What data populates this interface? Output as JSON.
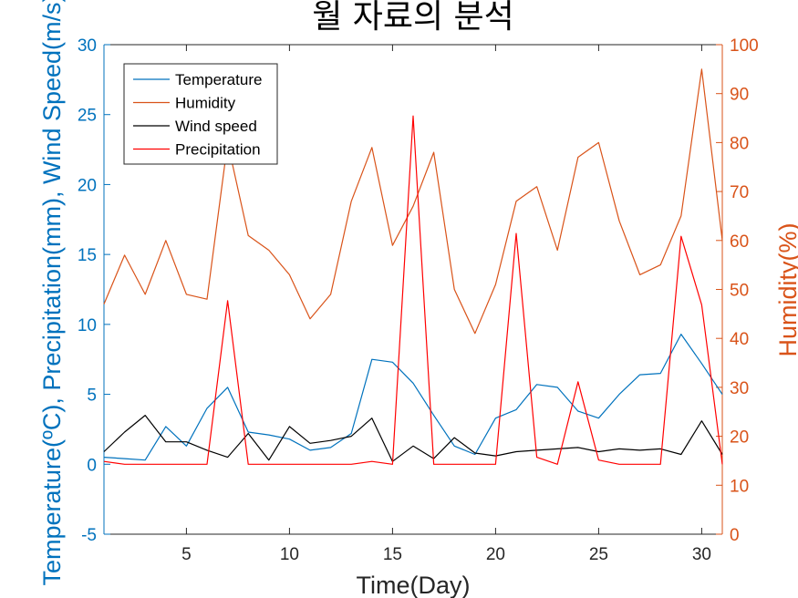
{
  "chart_data": {
    "type": "line",
    "title": "월 자료의 분석",
    "xlabel": "Time(Day)",
    "ylabel_left": "Temperature(ºC), Precipitation(mm), Wind Speed(m/s)",
    "ylabel_right": "Humidity(%)",
    "xlim": [
      1,
      31
    ],
    "ylim_left": [
      -5,
      30
    ],
    "ylim_right": [
      0,
      100
    ],
    "xticks": [
      5,
      10,
      15,
      20,
      25,
      30
    ],
    "yticks_left": [
      -5,
      0,
      5,
      10,
      15,
      20,
      25,
      30
    ],
    "yticks_right": [
      0,
      10,
      20,
      30,
      40,
      50,
      60,
      70,
      80,
      90,
      100
    ],
    "grid": false,
    "legend_position": "top-left",
    "x": [
      1,
      2,
      3,
      4,
      5,
      6,
      7,
      8,
      9,
      10,
      11,
      12,
      13,
      14,
      15,
      16,
      17,
      18,
      19,
      20,
      21,
      22,
      23,
      24,
      25,
      26,
      27,
      28,
      29,
      30,
      31
    ],
    "series": [
      {
        "name": "Temperature",
        "axis": "left",
        "color": "#0072BD",
        "values": [
          0.5,
          0.4,
          0.3,
          2.7,
          1.3,
          4.0,
          5.5,
          2.3,
          2.1,
          1.8,
          1.0,
          1.2,
          2.2,
          7.5,
          7.3,
          5.8,
          3.5,
          1.3,
          0.7,
          3.3,
          3.9,
          5.7,
          5.5,
          3.8,
          3.3,
          5.0,
          6.4,
          6.5,
          9.3,
          7.2,
          5.0
        ]
      },
      {
        "name": "Humidity",
        "axis": "right",
        "color": "#D95319",
        "values": [
          47,
          57,
          49,
          60,
          49,
          48,
          80,
          61,
          58,
          53,
          44,
          49,
          68,
          79,
          59,
          67,
          78,
          50,
          41,
          51,
          68,
          71,
          58,
          77,
          80,
          64,
          53,
          55,
          65,
          95,
          60
        ]
      },
      {
        "name": "Wind speed",
        "axis": "left",
        "color": "#000000",
        "values": [
          0.9,
          2.3,
          3.5,
          1.6,
          1.6,
          1.0,
          0.5,
          2.2,
          0.3,
          2.7,
          1.5,
          1.7,
          2.0,
          3.3,
          0.2,
          1.3,
          0.4,
          1.9,
          0.8,
          0.6,
          0.9,
          1.0,
          1.1,
          1.2,
          0.9,
          1.1,
          1.0,
          1.1,
          0.7,
          3.1,
          0.7
        ]
      },
      {
        "name": "Precipitation",
        "axis": "left",
        "color": "#FF0000",
        "values": [
          0.2,
          0.0,
          0.0,
          0.0,
          0.0,
          0.0,
          11.7,
          0.0,
          0.0,
          0.0,
          0.0,
          0.0,
          0.0,
          0.2,
          0.0,
          24.9,
          0.0,
          0.0,
          0.0,
          0.0,
          16.5,
          0.5,
          0.0,
          5.9,
          0.3,
          0.0,
          0.0,
          0.0,
          16.3,
          11.4,
          0.0
        ]
      }
    ]
  }
}
